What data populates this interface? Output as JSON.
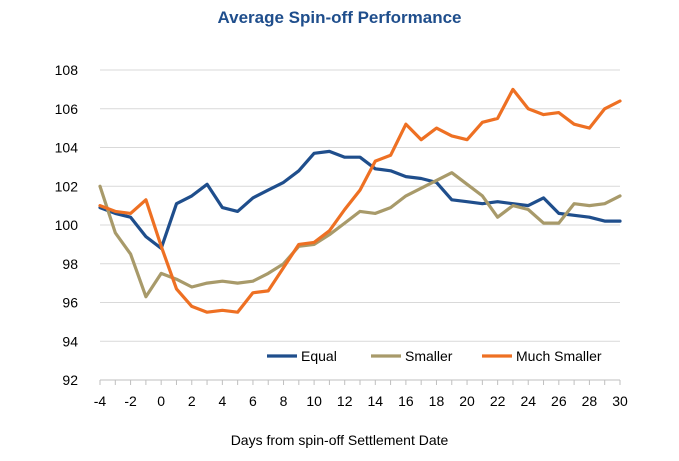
{
  "chart_data": {
    "type": "line",
    "title": "Average Spin-off Performance",
    "xlabel": "Days from spin-off Settlement Date",
    "ylabel": "",
    "xlim": [
      -4,
      30
    ],
    "ylim": [
      92,
      108
    ],
    "xticks": [
      -4,
      -2,
      0,
      2,
      4,
      6,
      8,
      10,
      12,
      14,
      16,
      18,
      20,
      22,
      24,
      26,
      28,
      30
    ],
    "yticks": [
      92,
      94,
      96,
      98,
      100,
      102,
      104,
      106,
      108
    ],
    "grid": "horizontal",
    "legend_position": "bottom-right",
    "x": [
      -4,
      -3,
      -2,
      -1,
      0,
      1,
      2,
      3,
      4,
      5,
      6,
      7,
      8,
      9,
      10,
      11,
      12,
      13,
      14,
      15,
      16,
      17,
      18,
      19,
      20,
      21,
      22,
      23,
      24,
      25,
      26,
      27,
      28,
      29,
      30
    ],
    "series": [
      {
        "name": "Equal",
        "color": "#1f4e8c",
        "values": [
          100.9,
          100.6,
          100.4,
          99.4,
          98.8,
          101.1,
          101.5,
          102.1,
          100.9,
          100.7,
          101.4,
          101.8,
          102.2,
          102.8,
          103.7,
          103.8,
          103.5,
          103.5,
          102.9,
          102.8,
          102.5,
          102.4,
          102.2,
          101.3,
          101.2,
          101.1,
          101.2,
          101.1,
          101.0,
          101.4,
          100.6,
          100.5,
          100.4,
          100.2,
          100.2
        ]
      },
      {
        "name": "Smaller",
        "color": "#a89a6a",
        "values": [
          102.0,
          99.6,
          98.5,
          96.3,
          97.5,
          97.2,
          96.8,
          97.0,
          97.1,
          97.0,
          97.1,
          97.5,
          98.0,
          98.9,
          99.0,
          99.5,
          100.1,
          100.7,
          100.6,
          100.9,
          101.5,
          101.9,
          102.3,
          102.7,
          102.1,
          101.5,
          100.4,
          101.0,
          100.8,
          100.1,
          100.1,
          101.1,
          101.0,
          101.1,
          101.5
        ]
      },
      {
        "name": "Much Smaller",
        "color": "#ee7023",
        "values": [
          101.0,
          100.7,
          100.6,
          101.3,
          98.9,
          96.7,
          95.8,
          95.5,
          95.6,
          95.5,
          96.5,
          96.6,
          97.8,
          99.0,
          99.1,
          99.7,
          100.8,
          101.8,
          103.3,
          103.6,
          105.2,
          104.4,
          105.0,
          104.6,
          104.4,
          105.3,
          105.5,
          107.0,
          106.0,
          105.7,
          105.8,
          105.2,
          105.0,
          106.0,
          106.4
        ]
      }
    ]
  }
}
